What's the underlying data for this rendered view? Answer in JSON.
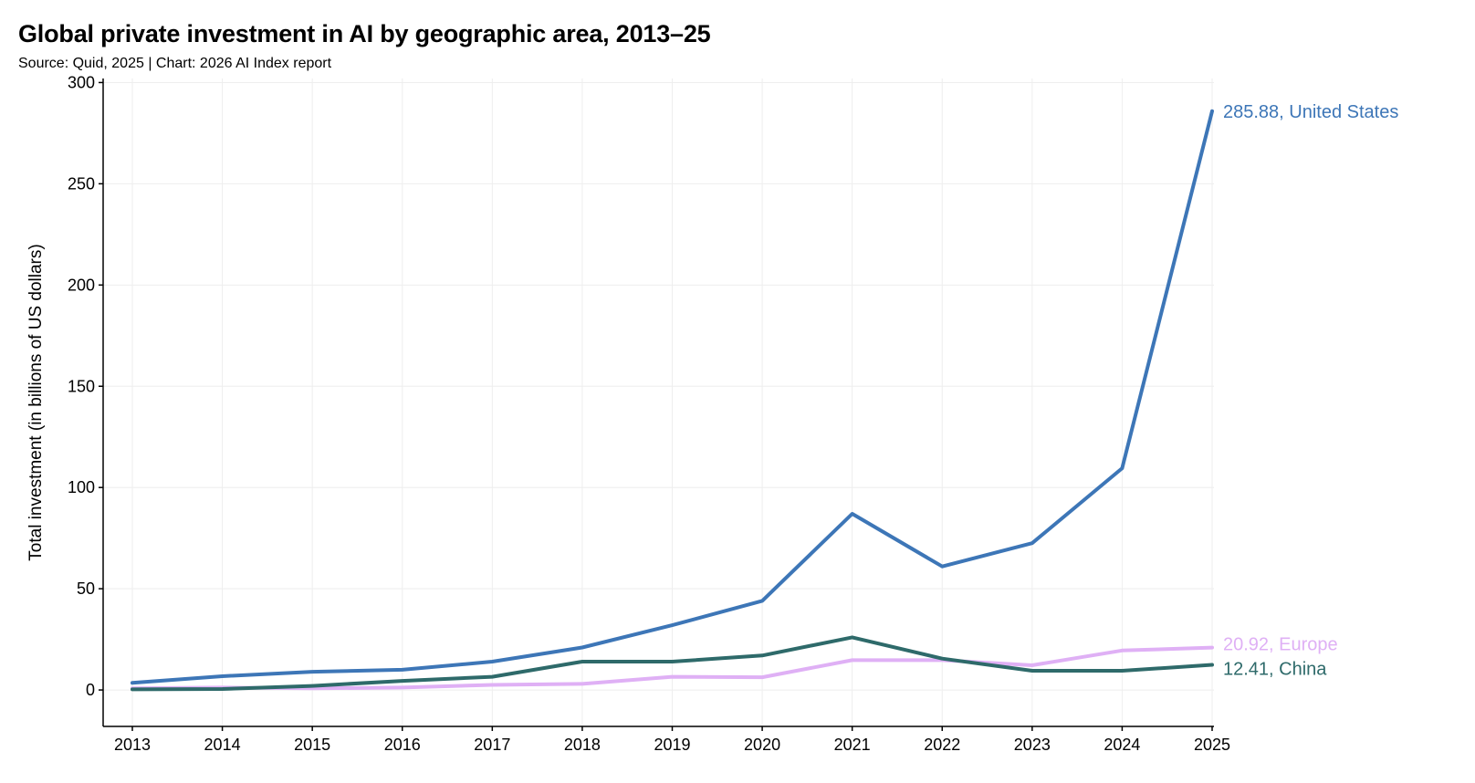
{
  "title": "Global private investment in AI by geographic area, 2013–25",
  "subtitle": "Source: Quid, 2025 | Chart: 2026 AI Index report",
  "chart_data": {
    "type": "line",
    "title": "Global private investment in AI by geographic area, 2013–25",
    "xlabel": "",
    "ylabel": "Total investment (in billions of US dollars)",
    "x": [
      "2013",
      "2014",
      "2015",
      "2016",
      "2017",
      "2018",
      "2019",
      "2020",
      "2021",
      "2022",
      "2023",
      "2024",
      "2025"
    ],
    "ylim": [
      -18,
      302
    ],
    "yticks": [
      0,
      50,
      100,
      150,
      200,
      250,
      300
    ],
    "grid": true,
    "series": [
      {
        "name": "United States",
        "color": "#3d76b7",
        "values": [
          3.5,
          6.8,
          9.0,
          10.0,
          14.0,
          21.0,
          32.0,
          44.0,
          87.0,
          61.0,
          72.5,
          109.5,
          285.88
        ],
        "end_label": "285.88, United States"
      },
      {
        "name": "Europe",
        "color": "#dfb0f5",
        "values": [
          0.8,
          1.2,
          0.8,
          1.2,
          2.5,
          3.0,
          6.5,
          6.3,
          14.7,
          14.7,
          12.2,
          19.5,
          20.92
        ],
        "end_label": "20.92, Europe"
      },
      {
        "name": "China",
        "color": "#2e6a6a",
        "values": [
          0.3,
          0.5,
          2.0,
          4.5,
          6.5,
          14.0,
          14.0,
          17.0,
          26.0,
          15.5,
          9.5,
          9.5,
          12.41
        ],
        "end_label": "12.41, China"
      }
    ]
  }
}
